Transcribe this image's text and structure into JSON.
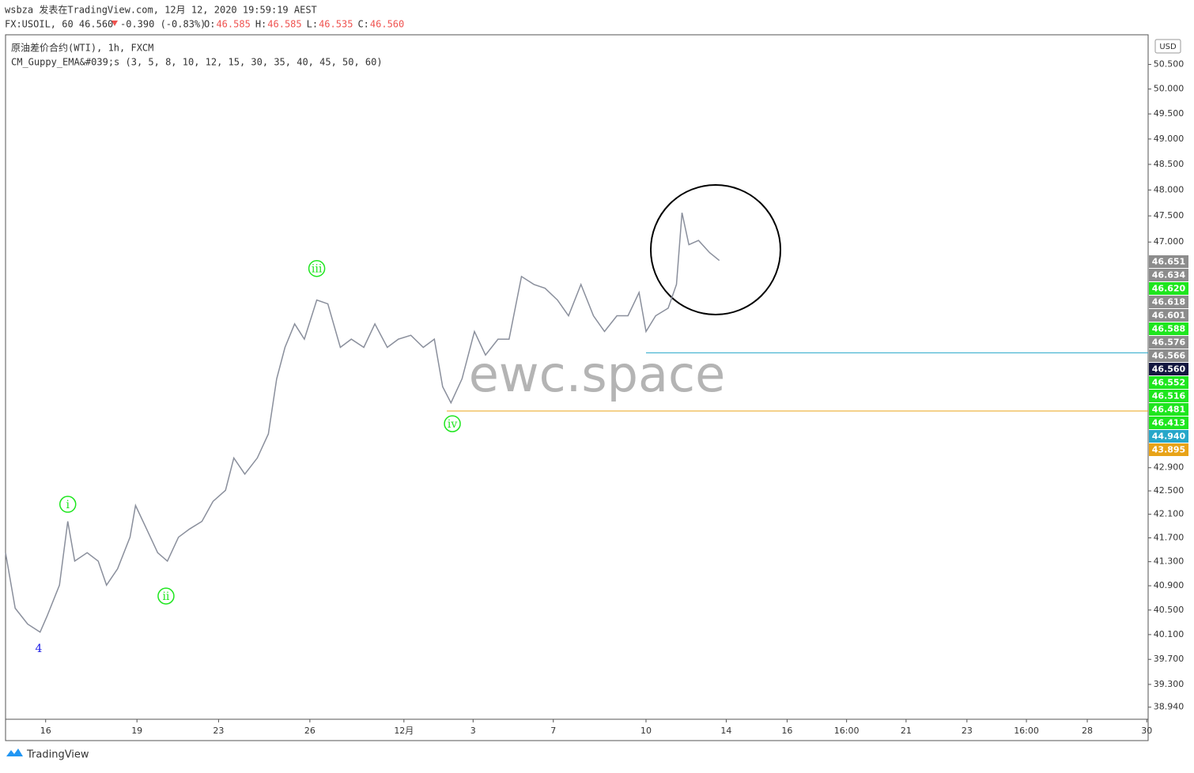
{
  "header": {
    "author_line": "wsbza 发表在TradingView.com, 12月 12, 2020 19:59:19 AEST",
    "symbol": "FX:USOIL, 60 46.560",
    "change": "-0.390 (-0.83%)",
    "ohlc": [
      {
        "key": "O:",
        "value": "46.585"
      },
      {
        "key": "H:",
        "value": "46.585"
      },
      {
        "key": "L:",
        "value": "46.535"
      },
      {
        "key": "C:",
        "value": "46.560"
      }
    ],
    "legend": [
      "原油差价合约(WTI), 1h, FXCM",
      "CM_Guppy_EMA&#039;s (3, 5, 8, 10, 12, 15, 30, 35, 40, 45, 50, 60)"
    ],
    "currency": "USD",
    "watermark": "ewc.space",
    "brand": "TradingView"
  },
  "chart_data": {
    "type": "line",
    "color": "#8a8f9c",
    "log_scale": true,
    "x": [
      0,
      7,
      16,
      25,
      30,
      39,
      45,
      50,
      59,
      67,
      73,
      81,
      90,
      94,
      102,
      110,
      117,
      125,
      133,
      142,
      150,
      159,
      165,
      173,
      182,
      190,
      196,
      202,
      209,
      216,
      225,
      233,
      242,
      250,
      259,
      267,
      276,
      284,
      293,
      302,
      310,
      316,
      322,
      330,
      339,
      347,
      356,
      364,
      373,
      382,
      390,
      399,
      407,
      416,
      425,
      433,
      442,
      450,
      458,
      463,
      470,
      479,
      485,
      489,
      494,
      501,
      509,
      516
    ],
    "values": [
      41.45,
      40.53,
      40.27,
      40.14,
      40.4,
      40.91,
      41.98,
      41.31,
      41.45,
      41.31,
      40.91,
      41.18,
      41.71,
      42.25,
      41.85,
      41.45,
      41.31,
      41.71,
      41.85,
      41.98,
      42.32,
      42.51,
      43.07,
      42.79,
      43.07,
      43.49,
      44.47,
      45.04,
      45.47,
      45.19,
      45.91,
      45.84,
      45.04,
      45.19,
      45.04,
      45.47,
      45.04,
      45.19,
      45.26,
      45.04,
      45.19,
      44.33,
      44.04,
      44.47,
      45.33,
      44.9,
      45.19,
      45.19,
      46.35,
      46.2,
      46.13,
      45.91,
      45.62,
      46.2,
      45.62,
      45.33,
      45.62,
      45.62,
      46.05,
      45.33,
      45.62,
      45.76,
      46.2,
      47.56,
      46.95,
      47.03,
      46.8,
      46.65
    ],
    "xlim": [
      0,
      826
    ],
    "ylim": [
      38.75,
      51.11
    ],
    "xticks": [
      {
        "value": 29,
        "label": "16"
      },
      {
        "value": 95,
        "label": "19"
      },
      {
        "value": 154,
        "label": "23"
      },
      {
        "value": 220,
        "label": "26"
      },
      {
        "value": 288,
        "label": "12月"
      },
      {
        "value": 338,
        "label": "3"
      },
      {
        "value": 396,
        "label": "7"
      },
      {
        "value": 463,
        "label": "10"
      },
      {
        "value": 521,
        "label": "14"
      },
      {
        "value": 565,
        "label": "16"
      },
      {
        "value": 608,
        "label": "16:00"
      },
      {
        "value": 651,
        "label": "21"
      },
      {
        "value": 695,
        "label": "23"
      },
      {
        "value": 738,
        "label": "16:00"
      },
      {
        "value": 782,
        "label": "28"
      },
      {
        "value": 825,
        "label": "30"
      }
    ],
    "yticks": [
      {
        "value": 50.5,
        "label": "50.500"
      },
      {
        "value": 50,
        "label": "50.000"
      },
      {
        "value": 49.5,
        "label": "49.500"
      },
      {
        "value": 49,
        "label": "49.000"
      },
      {
        "value": 48.5,
        "label": "48.500"
      },
      {
        "value": 48,
        "label": "48.000"
      },
      {
        "value": 47.5,
        "label": "47.500"
      },
      {
        "value": 47,
        "label": "47.000"
      },
      {
        "value": 42.9,
        "label": "42.900"
      },
      {
        "value": 42.5,
        "label": "42.500"
      },
      {
        "value": 42.1,
        "label": "42.100"
      },
      {
        "value": 41.7,
        "label": "41.700"
      },
      {
        "value": 41.3,
        "label": "41.300"
      },
      {
        "value": 40.9,
        "label": "40.900"
      },
      {
        "value": 40.5,
        "label": "40.500"
      },
      {
        "value": 40.1,
        "label": "40.100"
      },
      {
        "value": 39.7,
        "label": "39.700"
      },
      {
        "value": 39.3,
        "label": "39.300"
      },
      {
        "value": 38.94,
        "label": "38.940"
      }
    ],
    "price_labels": [
      {
        "value": 46.651,
        "label": "46.651",
        "color": "#8c8c8c"
      },
      {
        "value": 46.634,
        "label": "46.634",
        "color": "#8c8c8c"
      },
      {
        "value": 46.62,
        "label": "46.620",
        "color": "#1ee61e"
      },
      {
        "value": 46.618,
        "label": "46.618",
        "color": "#8c8c8c"
      },
      {
        "value": 46.601,
        "label": "46.601",
        "color": "#8c8c8c"
      },
      {
        "value": 46.588,
        "label": "46.588",
        "color": "#1ee61e"
      },
      {
        "value": 46.576,
        "label": "46.576",
        "color": "#8c8c8c"
      },
      {
        "value": 46.566,
        "label": "46.566",
        "color": "#8c8c8c"
      },
      {
        "value": 46.56,
        "label": "46.560",
        "color": "#131740"
      },
      {
        "value": 46.552,
        "label": "46.552",
        "color": "#1ee61e"
      },
      {
        "value": 46.516,
        "label": "46.516",
        "color": "#1ee61e"
      },
      {
        "value": 46.481,
        "label": "46.481",
        "color": "#1ee61e"
      },
      {
        "value": 46.413,
        "label": "46.413",
        "color": "#1ee61e"
      },
      {
        "value": 44.94,
        "label": "44.940",
        "color": "#26a7c9",
        "line_from": 463
      },
      {
        "value": 43.895,
        "label": "43.895",
        "color": "#e8a317",
        "line_from": 319
      }
    ],
    "annotations": [
      {
        "text": "4",
        "x": 24,
        "y": 39.88,
        "color": "#1a1ae6"
      },
      {
        "text": "i",
        "x": 45,
        "y": 42.27,
        "color": "#1ee61e"
      },
      {
        "text": "ii",
        "x": 116,
        "y": 40.73,
        "color": "#1ee61e"
      },
      {
        "text": "iii",
        "x": 225,
        "y": 46.5,
        "color": "#1ee61e"
      },
      {
        "text": "iv",
        "x": 323,
        "y": 43.67,
        "color": "#1ee61e"
      }
    ]
  }
}
